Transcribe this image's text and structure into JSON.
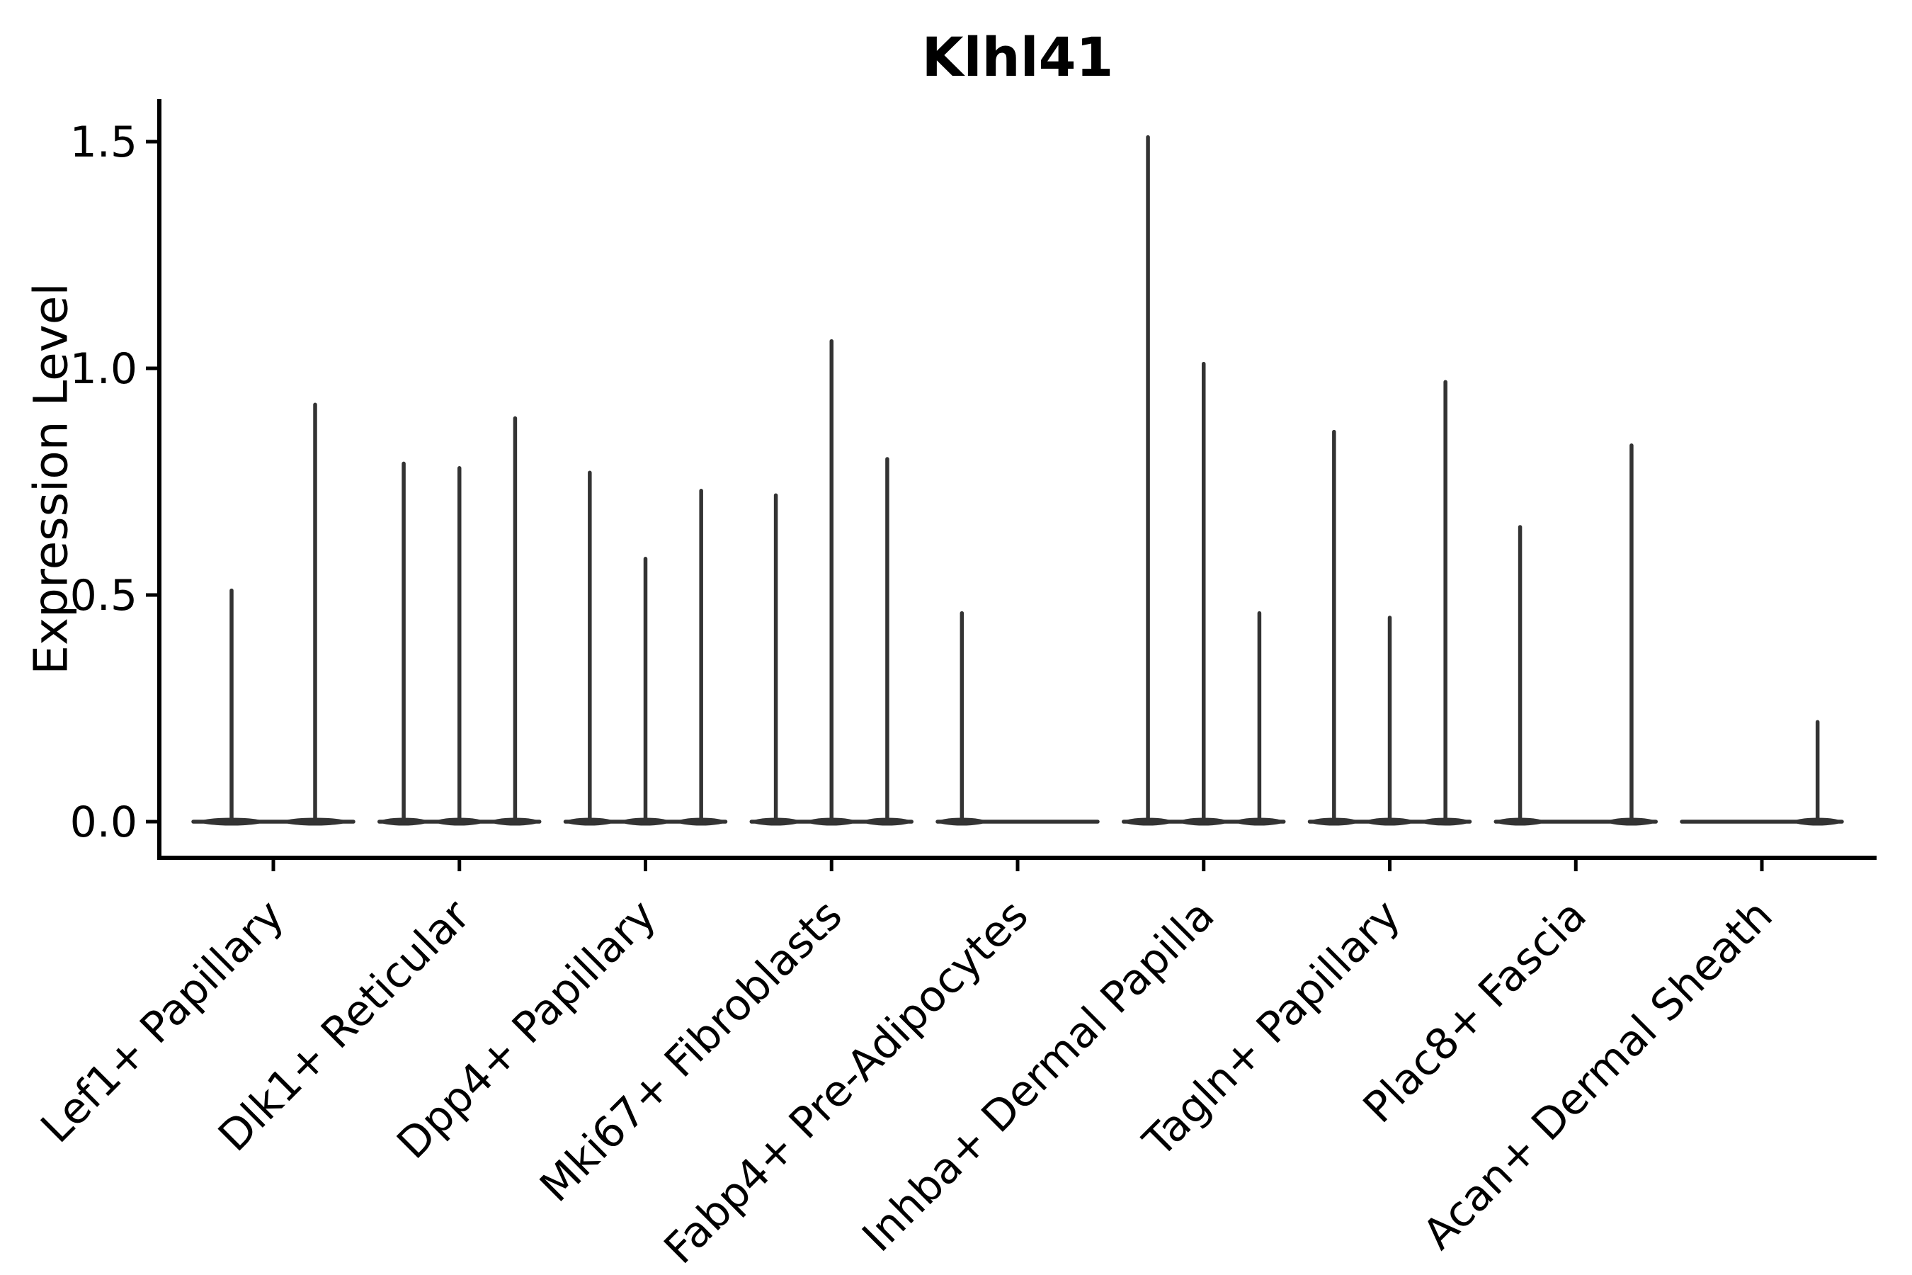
{
  "figure": {
    "title": "Klhl41",
    "ylabel": "Expression Level"
  },
  "chart_data": {
    "type": "violin",
    "title": "Klhl41",
    "xlabel": "",
    "ylabel": "Expression Level",
    "ytick_labels": [
      "0.0",
      "0.5",
      "1.0",
      "1.5"
    ],
    "ytick_values": [
      0.0,
      0.5,
      1.0,
      1.5
    ],
    "ylim": [
      -0.08,
      1.59
    ],
    "grid": false,
    "legend": "none",
    "x_labels_rotation_degrees": 45,
    "categories": [
      "Lef1+ Papillary",
      "Dlk1+ Reticular",
      "Dpp4+ Papillary",
      "Mki67+ Fibroblasts",
      "Fabp4+ Pre-Adipocytes",
      "Inhba+ Dermal Papilla",
      "Tagln+ Papillary",
      "Plac8+ Fascia",
      "Acan+ Dermal Sheath"
    ],
    "groups": [
      {
        "category": "Lef1+ Papillary",
        "violin_peak_expression": [
          0.51,
          0.92
        ]
      },
      {
        "category": "Dlk1+ Reticular",
        "violin_peak_expression": [
          0.79,
          0.78,
          0.89
        ]
      },
      {
        "category": "Dpp4+ Papillary",
        "violin_peak_expression": [
          0.77,
          0.58,
          0.73
        ]
      },
      {
        "category": "Mki67+ Fibroblasts",
        "violin_peak_expression": [
          0.72,
          1.06,
          0.8
        ]
      },
      {
        "category": "Fabp4+ Pre-Adipocytes",
        "violin_peak_expression": [
          0.46,
          0.0,
          0.0
        ]
      },
      {
        "category": "Inhba+ Dermal Papilla",
        "violin_peak_expression": [
          1.51,
          1.01,
          0.46
        ]
      },
      {
        "category": "Tagln+ Papillary",
        "violin_peak_expression": [
          0.86,
          0.45,
          0.97
        ]
      },
      {
        "category": "Plac8+ Fascia",
        "violin_peak_expression": [
          0.65,
          0.0,
          0.83
        ]
      },
      {
        "category": "Acan+ Dermal Sheath",
        "violin_peak_expression": [
          0.0,
          0.0,
          0.22
        ]
      }
    ],
    "colors": {
      "violin": "#333333",
      "axis": "#000000",
      "text": "#000000",
      "background": "#ffffff"
    }
  }
}
